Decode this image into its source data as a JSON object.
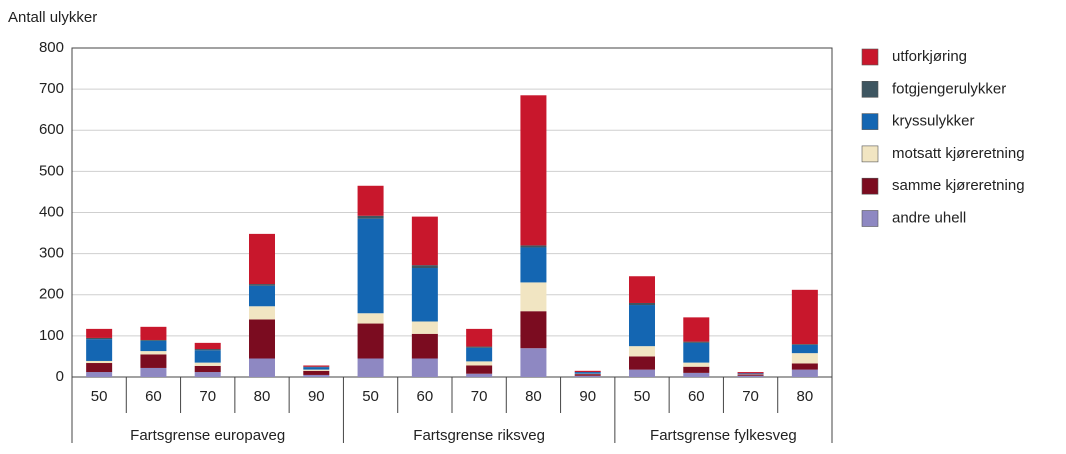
{
  "chart_data": {
    "type": "bar",
    "stacked": true,
    "y_label": "Antall ulykker",
    "groups": [
      {
        "name": "Fartsgrense europaveg",
        "categories": [
          "50",
          "60",
          "70",
          "80",
          "90"
        ]
      },
      {
        "name": "Fartsgrense riksveg",
        "categories": [
          "50",
          "60",
          "70",
          "80",
          "90"
        ]
      },
      {
        "name": "Fartsgrense fylkesveg",
        "categories": [
          "50",
          "60",
          "70",
          "80"
        ]
      }
    ],
    "series": [
      {
        "name": "andre uhell",
        "color": "#8e88c2",
        "values": [
          12,
          22,
          12,
          45,
          5,
          45,
          45,
          8,
          70,
          3,
          18,
          10,
          3,
          18
        ]
      },
      {
        "name": "samme kjøreretning",
        "color": "#7b0c20",
        "values": [
          22,
          33,
          15,
          95,
          10,
          85,
          60,
          20,
          90,
          4,
          32,
          15,
          3,
          15
        ]
      },
      {
        "name": "motsatt kjøreretning",
        "color": "#f1e5c2",
        "values": [
          5,
          8,
          8,
          32,
          3,
          25,
          30,
          10,
          70,
          1,
          25,
          10,
          1,
          25
        ]
      },
      {
        "name": "kryssulykker",
        "color": "#1466b2",
        "values": [
          53,
          25,
          30,
          50,
          6,
          230,
          130,
          33,
          85,
          4,
          100,
          48,
          2,
          20
        ]
      },
      {
        "name": "fotgjengerulykker",
        "color": "#3e5661",
        "values": [
          3,
          2,
          3,
          4,
          1,
          7,
          7,
          3,
          5,
          0,
          5,
          3,
          0,
          2
        ]
      },
      {
        "name": "utforkjøring",
        "color": "#c8172c",
        "values": [
          22,
          32,
          15,
          122,
          3,
          73,
          118,
          43,
          365,
          3,
          65,
          59,
          3,
          132
        ]
      }
    ],
    "ylim": [
      0,
      800
    ],
    "yticks": [
      0,
      100,
      200,
      300,
      400,
      500,
      600,
      700,
      800
    ],
    "grid": true
  }
}
